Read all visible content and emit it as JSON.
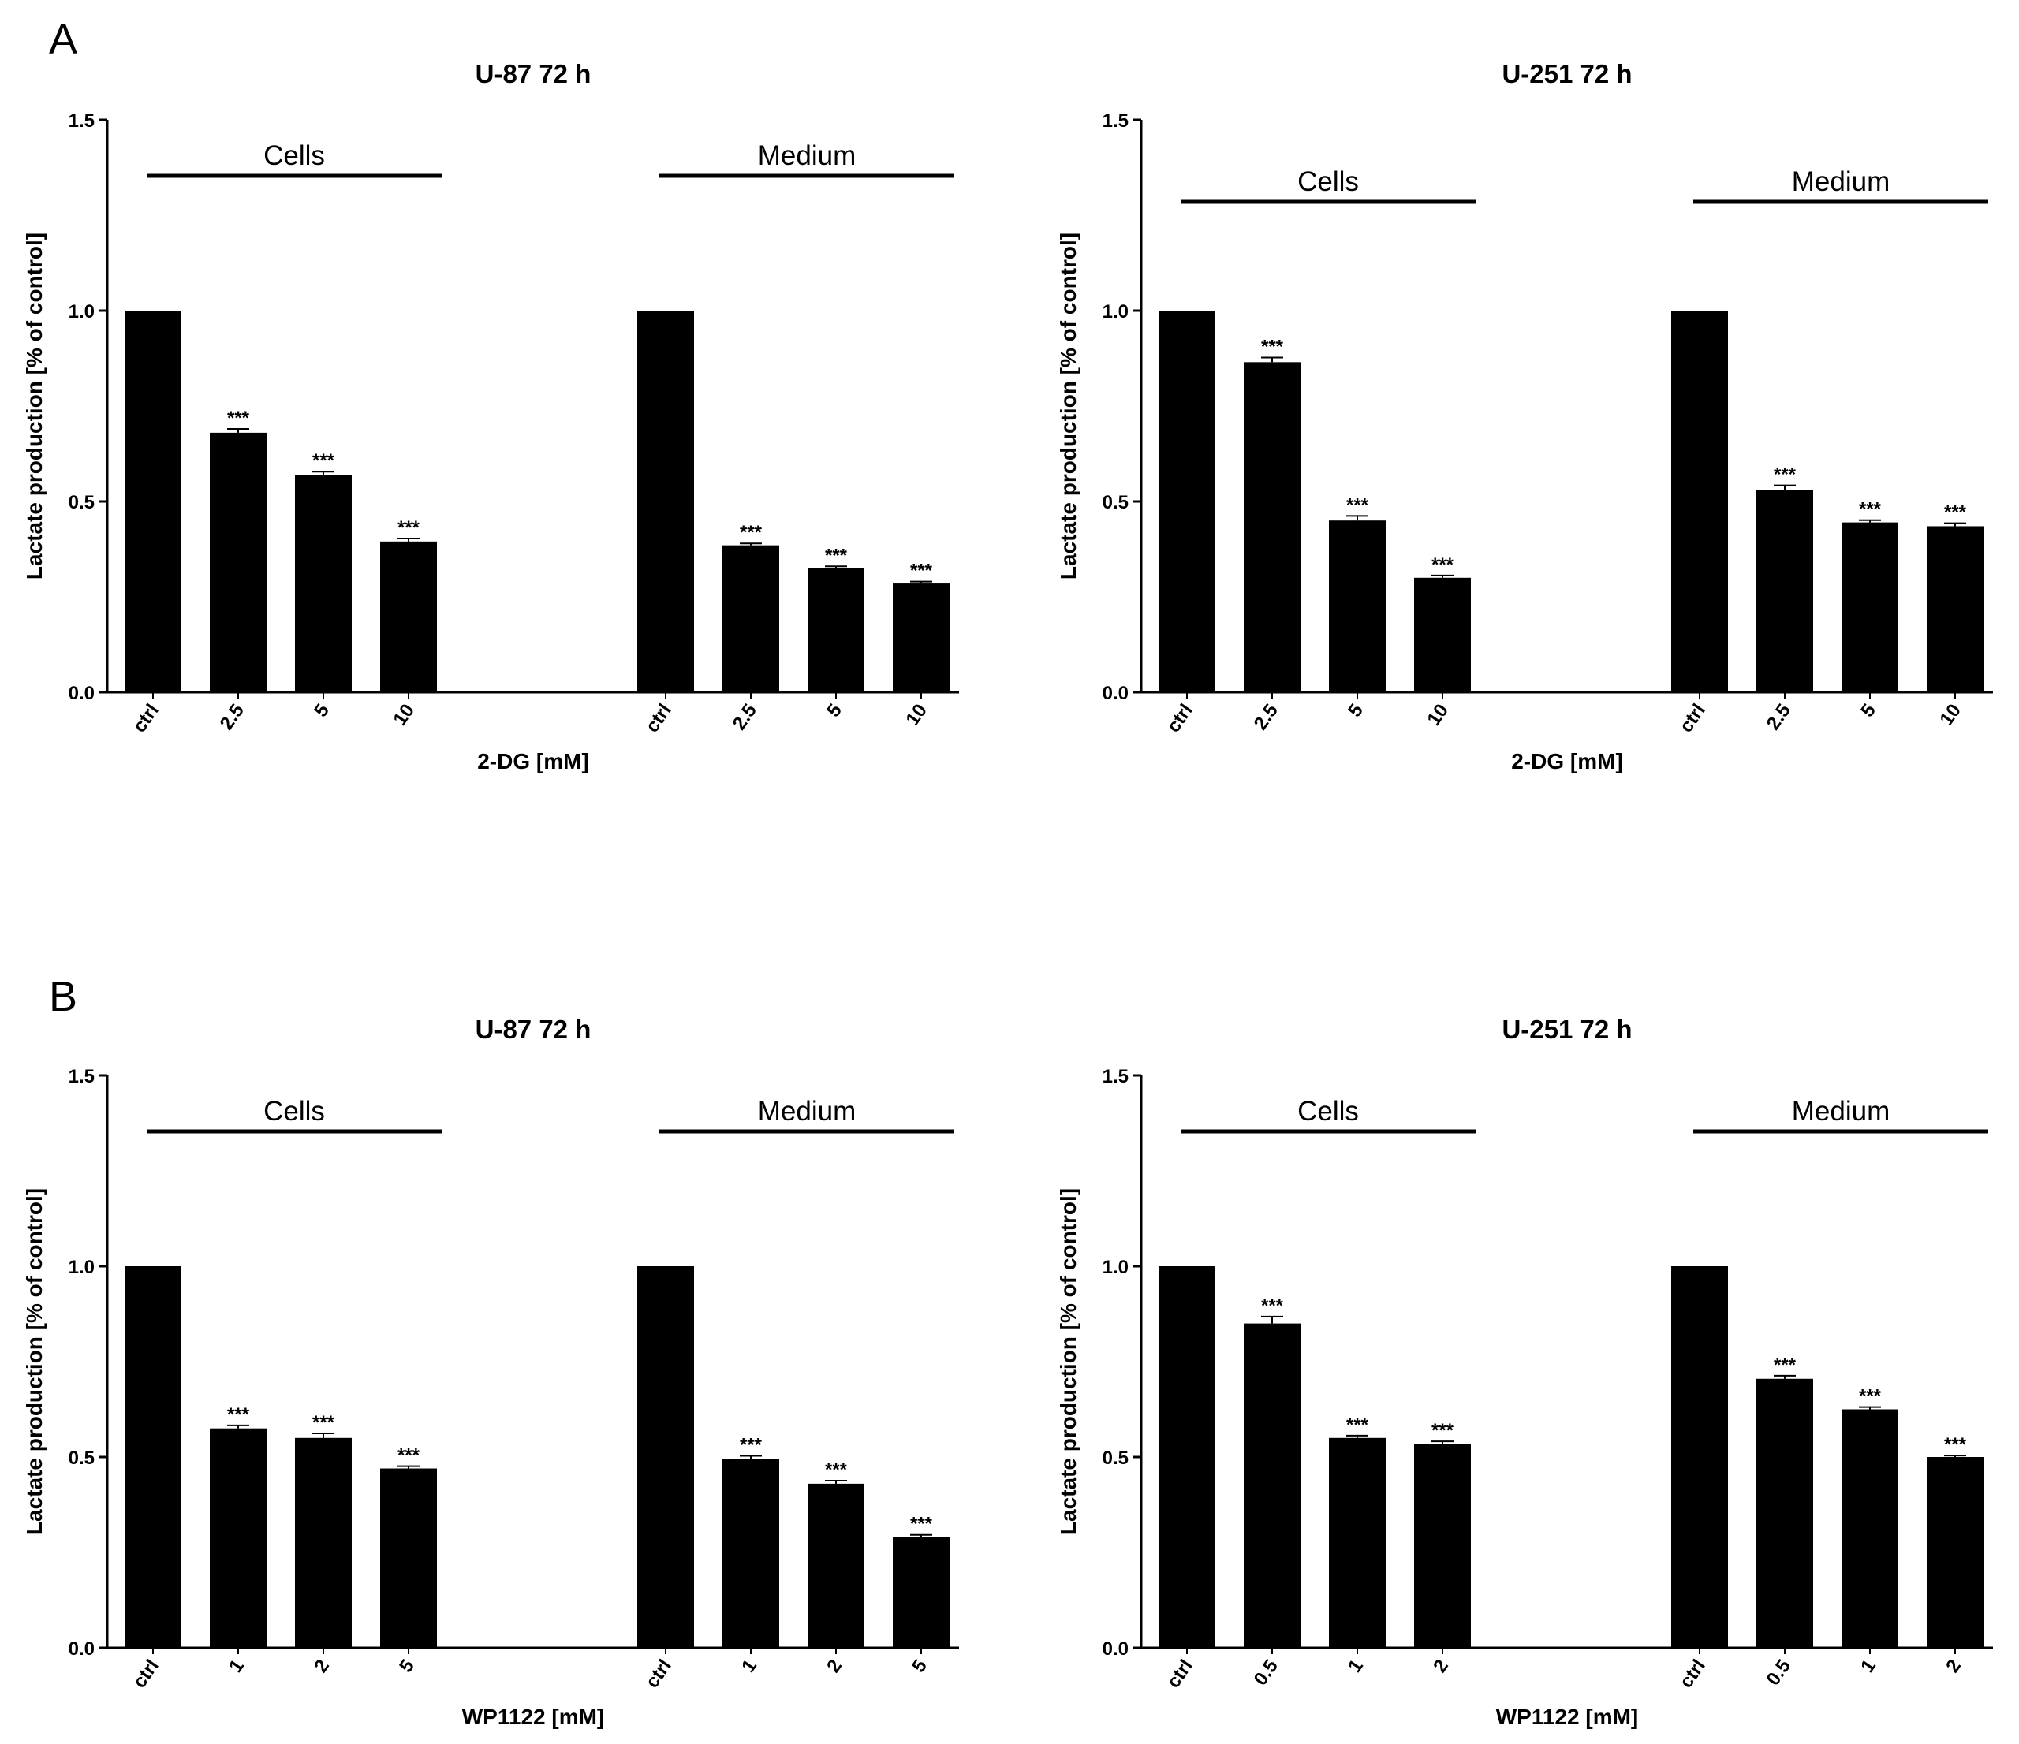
{
  "panels": [
    {
      "letter": "A"
    },
    {
      "letter": "B"
    }
  ],
  "chart_data": [
    {
      "type": "bar",
      "panel": "A",
      "title": "U-87 72 h",
      "xlabel": "2-DG [mM]",
      "ylabel": "Lactate production [% of control]",
      "ylim": [
        0,
        1.5
      ],
      "yticks": [
        "0.0",
        "0.5",
        "1.0",
        "1.5"
      ],
      "groups": [
        {
          "label": "Cells",
          "categories": [
            "ctrl",
            "2.5",
            "5",
            "10"
          ],
          "values": [
            1.0,
            0.68,
            0.57,
            0.395
          ],
          "errors": [
            0,
            0.01,
            0.008,
            0.008
          ],
          "significance": [
            "",
            "***",
            "***",
            "***"
          ]
        },
        {
          "label": "Medium",
          "categories": [
            "ctrl",
            "2.5",
            "5",
            "10"
          ],
          "values": [
            1.0,
            0.385,
            0.325,
            0.285
          ],
          "errors": [
            0,
            0.005,
            0.005,
            0.005
          ],
          "significance": [
            "",
            "***",
            "***",
            "***"
          ]
        }
      ]
    },
    {
      "type": "bar",
      "panel": "A",
      "title": "U-251 72 h",
      "xlabel": "2-DG [mM]",
      "ylabel": "Lactate production [% of control]",
      "ylim": [
        0,
        1.5
      ],
      "yticks": [
        "0.0",
        "0.5",
        "1.0",
        "1.5"
      ],
      "groups": [
        {
          "label": "Cells",
          "categories": [
            "ctrl",
            "2.5",
            "5",
            "10"
          ],
          "values": [
            1.0,
            0.865,
            0.45,
            0.3
          ],
          "errors": [
            0,
            0.012,
            0.012,
            0.006
          ],
          "significance": [
            "",
            "***",
            "***",
            "***"
          ]
        },
        {
          "label": "Medium",
          "categories": [
            "ctrl",
            "2.5",
            "5",
            "10"
          ],
          "values": [
            1.0,
            0.53,
            0.445,
            0.435
          ],
          "errors": [
            0,
            0.012,
            0.006,
            0.008
          ],
          "significance": [
            "",
            "***",
            "***",
            "***"
          ]
        }
      ]
    },
    {
      "type": "bar",
      "panel": "B",
      "title": "U-87 72 h",
      "xlabel": "WP1122 [mM]",
      "ylabel": "Lactate production [% of control]",
      "ylim": [
        0,
        1.5
      ],
      "yticks": [
        "0.0",
        "0.5",
        "1.0",
        "1.5"
      ],
      "groups": [
        {
          "label": "Cells",
          "categories": [
            "ctrl",
            "1",
            "2",
            "5"
          ],
          "values": [
            1.0,
            0.575,
            0.55,
            0.47
          ],
          "errors": [
            0,
            0.008,
            0.012,
            0.006
          ],
          "significance": [
            "",
            "***",
            "***",
            "***"
          ]
        },
        {
          "label": "Medium",
          "categories": [
            "ctrl",
            "1",
            "2",
            "5"
          ],
          "values": [
            1.0,
            0.495,
            0.43,
            0.29
          ],
          "errors": [
            0,
            0.008,
            0.008,
            0.006
          ],
          "significance": [
            "",
            "***",
            "***",
            "***"
          ]
        }
      ]
    },
    {
      "type": "bar",
      "panel": "B",
      "title": "U-251 72 h",
      "xlabel": "WP1122 [mM]",
      "ylabel": "Lactate production [% of control]",
      "ylim": [
        0,
        1.5
      ],
      "yticks": [
        "0.0",
        "0.5",
        "1.0",
        "1.5"
      ],
      "groups": [
        {
          "label": "Cells",
          "categories": [
            "ctrl",
            "0.5",
            "1",
            "2"
          ],
          "values": [
            1.0,
            0.85,
            0.55,
            0.535
          ],
          "errors": [
            0,
            0.018,
            0.006,
            0.006
          ],
          "significance": [
            "",
            "***",
            "***",
            "***"
          ]
        },
        {
          "label": "Medium",
          "categories": [
            "ctrl",
            "0.5",
            "1",
            "2"
          ],
          "values": [
            1.0,
            0.705,
            0.625,
            0.5
          ],
          "errors": [
            0,
            0.008,
            0.006,
            0.004
          ],
          "significance": [
            "",
            "***",
            "***",
            "***"
          ]
        }
      ]
    }
  ]
}
